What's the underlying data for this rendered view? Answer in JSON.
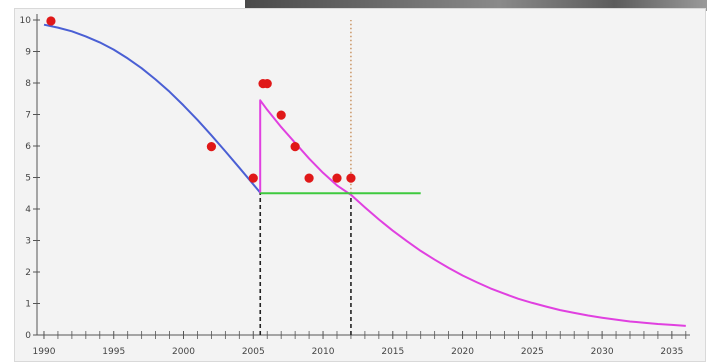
{
  "chart_data": {
    "type": "line",
    "title": "",
    "xlabel": "",
    "ylabel": "",
    "xlim": [
      1989.5,
      2036.3
    ],
    "ylim": [
      0,
      10
    ],
    "grid": false,
    "x_ticks": [
      1990,
      1995,
      2000,
      2005,
      2010,
      2015,
      2020,
      2025,
      2030,
      2035
    ],
    "y_ticks": [
      0,
      1,
      2,
      3,
      4,
      5,
      6,
      7,
      8,
      9,
      10
    ],
    "series": [
      {
        "color": "#4a5fd4",
        "kind": "line",
        "x": [
          1990.0,
          1991.0,
          1992.0,
          1993.0,
          1994.0,
          1995.0,
          1996.0,
          1997.0,
          1998.0,
          1999.0,
          2000.0,
          2001.0,
          2002.0,
          2003.0,
          2004.0,
          2005.0,
          2005.5
        ],
        "y": [
          9.85,
          9.76,
          9.64,
          9.48,
          9.29,
          9.06,
          8.78,
          8.47,
          8.11,
          7.72,
          7.29,
          6.83,
          6.34,
          5.83,
          5.31,
          4.78,
          4.52
        ]
      },
      {
        "color": "#e040e0",
        "kind": "line",
        "x": [
          2005.5,
          2005.5,
          2006.0,
          2007.0,
          2008.0,
          2009.0,
          2010.0,
          2011.0,
          2012.0,
          2013.0,
          2014.0,
          2015.0,
          2016.0,
          2017.0,
          2018.0,
          2019.0,
          2020.0,
          2021.0,
          2022.0,
          2023.0,
          2024.0,
          2025.0,
          2026.0,
          2027.0,
          2028.0,
          2029.0,
          2030.0,
          2031.0,
          2032.0,
          2033.0,
          2034.0,
          2035.0,
          2036.0
        ],
        "y": [
          4.52,
          7.45,
          7.15,
          6.6,
          6.1,
          5.6,
          5.15,
          4.75,
          4.45,
          4.05,
          3.67,
          3.31,
          2.98,
          2.67,
          2.39,
          2.13,
          1.89,
          1.68,
          1.48,
          1.31,
          1.15,
          1.02,
          0.9,
          0.79,
          0.7,
          0.62,
          0.55,
          0.49,
          0.43,
          0.39,
          0.35,
          0.32,
          0.29
        ]
      },
      {
        "color": "#3ec93e",
        "kind": "line",
        "x": [
          2005.5,
          2017.0
        ],
        "y": [
          4.5,
          4.5
        ]
      },
      {
        "color": "#e01818",
        "kind": "scatter",
        "x": [
          1990.5,
          2002.0,
          2005.0,
          2005.7,
          2006.0,
          2007.0,
          2008.0,
          2009.0,
          2011.0,
          2012.0
        ],
        "y": [
          9.97,
          5.98,
          4.98,
          7.98,
          7.98,
          6.98,
          5.98,
          4.98,
          4.98,
          4.98
        ]
      }
    ],
    "reference_lines": [
      {
        "x": 2005.5,
        "style": "dashed",
        "color": "#222222",
        "y_from": 0,
        "y_to": 4.52
      },
      {
        "x": 2012.0,
        "style": "dashed",
        "color": "#222222",
        "y_from": 0,
        "y_to": 4.5
      },
      {
        "x": 2012.0,
        "style": "dotted",
        "color": "#b5651d",
        "y_from": 4.5,
        "y_to": 10
      }
    ]
  }
}
